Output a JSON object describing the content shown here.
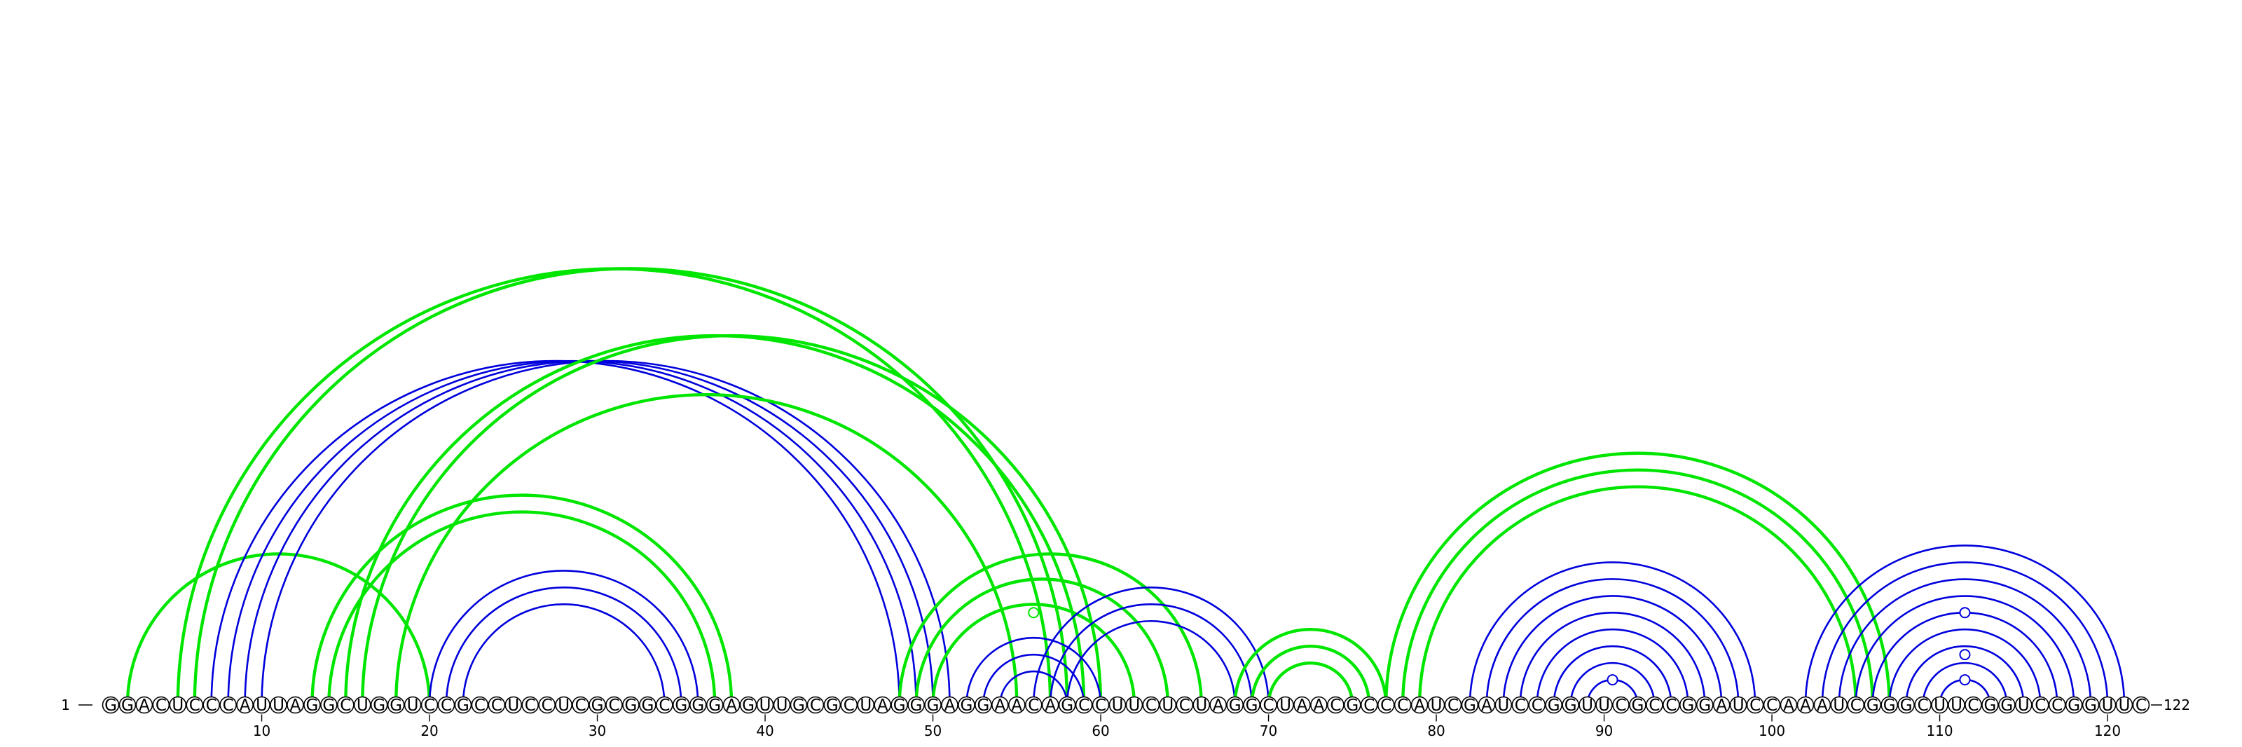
{
  "sequence": "GGACUCCCAUUAGGCUGGUCCGCCUCCUCGCGGCGGGAGUUGCGCUAGGGAGGAACAGCCUUCUCUAGGCUAACGCCCAUCGAUCCGGUUCGCCGGAUCCAAAUCGGGCUUCGGUCCGGUUC",
  "start_label": "1",
  "end_label": "122",
  "tick_labels": [
    "10",
    "20",
    "30",
    "40",
    "50",
    "60",
    "70",
    "80",
    "90",
    "100",
    "110",
    "120"
  ],
  "tick_positions": [
    10,
    20,
    30,
    40,
    50,
    60,
    70,
    80,
    90,
    100,
    110,
    120
  ],
  "colors": {
    "green": "#00e600",
    "blue": "#0000dd"
  },
  "pairs": [
    {
      "i": 2,
      "j": 20,
      "color": "green"
    },
    {
      "i": 5,
      "j": 57,
      "color": "green"
    },
    {
      "i": 6,
      "j": 58,
      "color": "green"
    },
    {
      "i": 7,
      "j": 48,
      "color": "blue"
    },
    {
      "i": 8,
      "j": 49,
      "color": "blue"
    },
    {
      "i": 9,
      "j": 50,
      "color": "blue"
    },
    {
      "i": 10,
      "j": 51,
      "color": "blue"
    },
    {
      "i": 13,
      "j": 38,
      "color": "green"
    },
    {
      "i": 14,
      "j": 37,
      "color": "green"
    },
    {
      "i": 15,
      "j": 59,
      "color": "green"
    },
    {
      "i": 16,
      "j": 60,
      "color": "green"
    },
    {
      "i": 18,
      "j": 55,
      "color": "green"
    },
    {
      "i": 20,
      "j": 36,
      "color": "blue"
    },
    {
      "i": 21,
      "j": 35,
      "color": "blue"
    },
    {
      "i": 22,
      "j": 34,
      "color": "blue"
    },
    {
      "i": 48,
      "j": 66,
      "color": "green"
    },
    {
      "i": 49,
      "j": 64,
      "color": "green"
    },
    {
      "i": 50,
      "j": 62,
      "color": "green"
    },
    {
      "i": 52,
      "j": 60,
      "color": "blue"
    },
    {
      "i": 53,
      "j": 59,
      "color": "blue"
    },
    {
      "i": 54,
      "j": 58,
      "color": "blue"
    },
    {
      "i": 56,
      "j": 70,
      "color": "blue"
    },
    {
      "i": 57,
      "j": 69,
      "color": "blue"
    },
    {
      "i": 58,
      "j": 68,
      "color": "blue"
    },
    {
      "i": 68,
      "j": 77,
      "color": "green"
    },
    {
      "i": 69,
      "j": 76,
      "color": "green"
    },
    {
      "i": 70,
      "j": 75,
      "color": "green"
    },
    {
      "i": 77,
      "j": 107,
      "color": "green"
    },
    {
      "i": 78,
      "j": 106,
      "color": "green"
    },
    {
      "i": 79,
      "j": 105,
      "color": "green"
    },
    {
      "i": 82,
      "j": 99,
      "color": "blue"
    },
    {
      "i": 83,
      "j": 98,
      "color": "blue"
    },
    {
      "i": 84,
      "j": 97,
      "color": "blue"
    },
    {
      "i": 85,
      "j": 96,
      "color": "blue"
    },
    {
      "i": 86,
      "j": 95,
      "color": "blue"
    },
    {
      "i": 87,
      "j": 94,
      "color": "blue"
    },
    {
      "i": 88,
      "j": 93,
      "color": "blue"
    },
    {
      "i": 89,
      "j": 92,
      "color": "blue"
    },
    {
      "i": 102,
      "j": 121,
      "color": "blue"
    },
    {
      "i": 103,
      "j": 120,
      "color": "blue"
    },
    {
      "i": 104,
      "j": 119,
      "color": "blue"
    },
    {
      "i": 105,
      "j": 118,
      "color": "blue"
    },
    {
      "i": 106,
      "j": 117,
      "color": "blue"
    },
    {
      "i": 107,
      "j": 116,
      "color": "blue"
    },
    {
      "i": 108,
      "j": 115,
      "color": "blue"
    },
    {
      "i": 109,
      "j": 114,
      "color": "blue"
    },
    {
      "i": 110,
      "j": 113,
      "color": "blue"
    }
  ],
  "markers": [
    {
      "pos": 90.5,
      "level": 1.5,
      "color": "blue"
    },
    {
      "pos": 111.5,
      "level": 1.5,
      "color": "blue"
    },
    {
      "pos": 111.5,
      "level": 3,
      "color": "blue"
    },
    {
      "pos": 111.5,
      "level": 5.5,
      "color": "blue"
    },
    {
      "pos": 56,
      "level": 5.5,
      "color": "green"
    }
  ]
}
